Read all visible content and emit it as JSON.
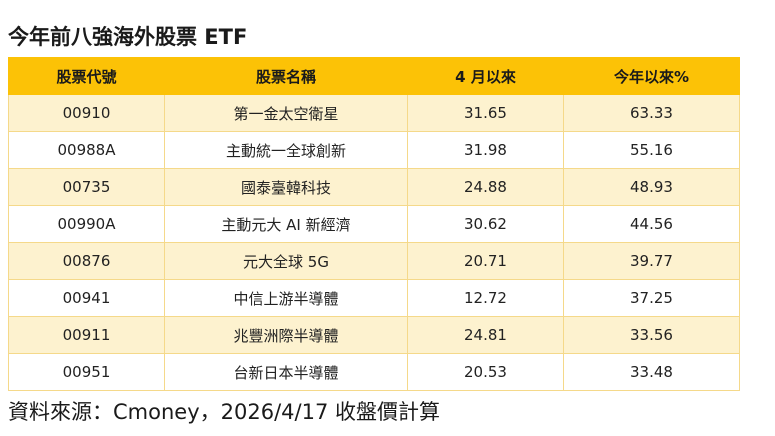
{
  "title": "今年前八強海外股票 ETF",
  "table": {
    "headers": [
      "股票代號",
      "股票名稱",
      "4 月以來",
      "今年以來%"
    ],
    "rows": [
      [
        "00910",
        "第一金太空衛星",
        "31.65",
        "63.33"
      ],
      [
        "00988A",
        "主動統一全球創新",
        "31.98",
        "55.16"
      ],
      [
        "00735",
        "國泰臺韓科技",
        "24.88",
        "48.93"
      ],
      [
        "00990A",
        "主動元大 AI 新經濟",
        "30.62",
        "44.56"
      ],
      [
        "00876",
        "元大全球 5G",
        "20.71",
        "39.77"
      ],
      [
        "00941",
        "中信上游半導體",
        "12.72",
        "37.25"
      ],
      [
        "00911",
        "兆豐洲際半導體",
        "24.81",
        "33.56"
      ],
      [
        "00951",
        "台新日本半導體",
        "20.53",
        "33.48"
      ]
    ]
  },
  "source": "資料來源：Cmoney，2026/4/17 收盤價計算",
  "colors": {
    "header_bg": "#fcc206",
    "odd_row_bg": "#fdf2cf",
    "even_row_bg": "#ffffff"
  }
}
